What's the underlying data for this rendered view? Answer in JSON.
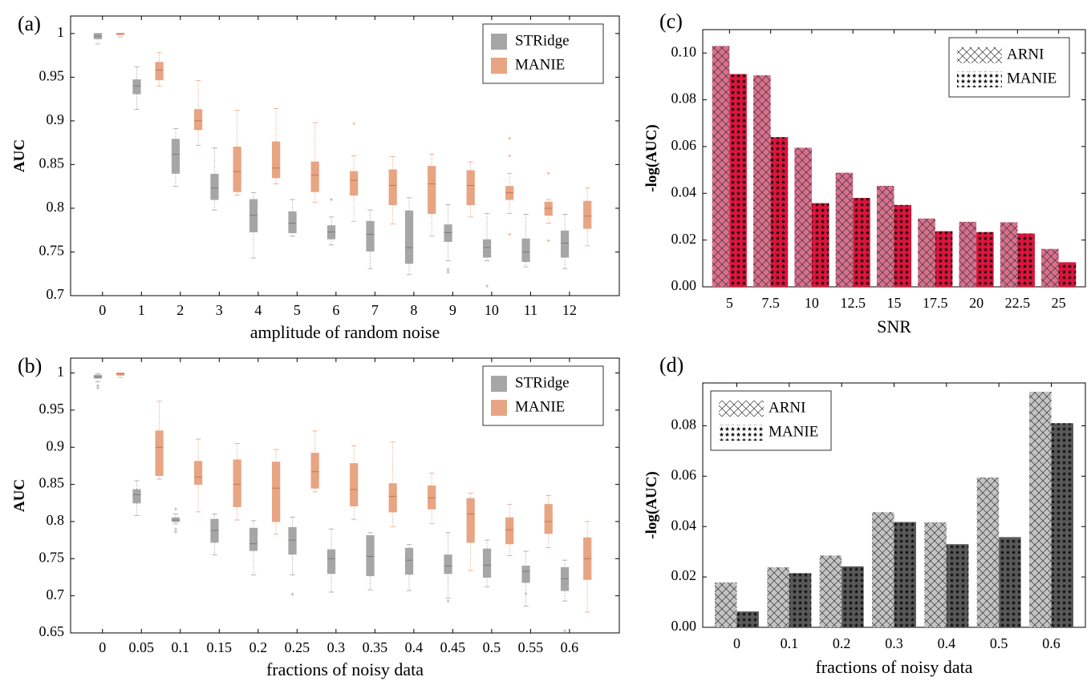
{
  "colors": {
    "stridge": "#a6a6a6",
    "manie_box": "#e8a583",
    "c_arni": "#dc6f8d",
    "c_manie": "#e0143c",
    "d_arni": "#c3c3c3",
    "d_manie": "#595959"
  },
  "chart_data": [
    {
      "panel": "(a)",
      "type": "box",
      "xlabel": "amplitude of random noise",
      "ylabel": "AUC",
      "categories": [
        "0",
        "1",
        "2",
        "3",
        "4",
        "5",
        "6",
        "7",
        "8",
        "9",
        "10",
        "11",
        "12"
      ],
      "ylim": [
        0.7,
        1.02
      ],
      "yticks": [
        {
          "v": 0.7,
          "label": "0.7"
        },
        {
          "v": 0.75,
          "label": "0.75"
        },
        {
          "v": 0.8,
          "label": "0.8"
        },
        {
          "v": 0.85,
          "label": "0.85"
        },
        {
          "v": 0.9,
          "label": "0.9"
        },
        {
          "v": 0.95,
          "label": "0.95"
        },
        {
          "v": 1.0,
          "label": "1"
        }
      ],
      "legend": {
        "position": "top-right",
        "entries": [
          "STRidge",
          "MANIE"
        ]
      },
      "series": [
        {
          "name": "STRidge",
          "color_key": "stridge",
          "boxes": [
            {
              "wlo": 0.988,
              "q1": 0.994,
              "med": 0.997,
              "q3": 1.0,
              "whi": 1.0,
              "out": []
            },
            {
              "wlo": 0.913,
              "q1": 0.931,
              "med": 0.94,
              "q3": 0.947,
              "whi": 0.962,
              "out": []
            },
            {
              "wlo": 0.825,
              "q1": 0.84,
              "med": 0.862,
              "q3": 0.879,
              "whi": 0.891,
              "out": []
            },
            {
              "wlo": 0.798,
              "q1": 0.81,
              "med": 0.823,
              "q3": 0.839,
              "whi": 0.869,
              "out": []
            },
            {
              "wlo": 0.743,
              "q1": 0.773,
              "med": 0.792,
              "q3": 0.81,
              "whi": 0.818,
              "out": []
            },
            {
              "wlo": 0.768,
              "q1": 0.772,
              "med": 0.783,
              "q3": 0.796,
              "whi": 0.81,
              "out": []
            },
            {
              "wlo": 0.758,
              "q1": 0.765,
              "med": 0.773,
              "q3": 0.78,
              "whi": 0.79,
              "out": [
                0.81
              ]
            },
            {
              "wlo": 0.731,
              "q1": 0.751,
              "med": 0.77,
              "q3": 0.785,
              "whi": 0.798,
              "out": []
            },
            {
              "wlo": 0.724,
              "q1": 0.737,
              "med": 0.755,
              "q3": 0.797,
              "whi": 0.812,
              "out": []
            },
            {
              "wlo": 0.74,
              "q1": 0.762,
              "med": 0.772,
              "q3": 0.781,
              "whi": 0.804,
              "out": [
                0.727,
                0.73
              ]
            },
            {
              "wlo": 0.74,
              "q1": 0.744,
              "med": 0.755,
              "q3": 0.764,
              "whi": 0.794,
              "out": [
                0.711
              ]
            },
            {
              "wlo": 0.733,
              "q1": 0.739,
              "med": 0.75,
              "q3": 0.765,
              "whi": 0.793,
              "out": []
            },
            {
              "wlo": 0.731,
              "q1": 0.744,
              "med": 0.76,
              "q3": 0.774,
              "whi": 0.793,
              "out": []
            }
          ]
        },
        {
          "name": "MANIE",
          "color_key": "manie_box",
          "boxes": [
            {
              "wlo": 0.996,
              "q1": 0.999,
              "med": 1.0,
              "q3": 1.0,
              "whi": 1.0,
              "out": []
            },
            {
              "wlo": 0.94,
              "q1": 0.947,
              "med": 0.958,
              "q3": 0.967,
              "whi": 0.978,
              "out": []
            },
            {
              "wlo": 0.872,
              "q1": 0.89,
              "med": 0.9,
              "q3": 0.913,
              "whi": 0.946,
              "out": []
            },
            {
              "wlo": 0.815,
              "q1": 0.819,
              "med": 0.842,
              "q3": 0.87,
              "whi": 0.912,
              "out": []
            },
            {
              "wlo": 0.828,
              "q1": 0.835,
              "med": 0.846,
              "q3": 0.876,
              "whi": 0.914,
              "out": []
            },
            {
              "wlo": 0.807,
              "q1": 0.819,
              "med": 0.838,
              "q3": 0.853,
              "whi": 0.898,
              "out": []
            },
            {
              "wlo": 0.785,
              "q1": 0.815,
              "med": 0.832,
              "q3": 0.842,
              "whi": 0.86,
              "out": [
                0.897
              ]
            },
            {
              "wlo": 0.782,
              "q1": 0.804,
              "med": 0.826,
              "q3": 0.844,
              "whi": 0.859,
              "out": []
            },
            {
              "wlo": 0.768,
              "q1": 0.794,
              "med": 0.828,
              "q3": 0.848,
              "whi": 0.862,
              "out": []
            },
            {
              "wlo": 0.79,
              "q1": 0.804,
              "med": 0.826,
              "q3": 0.843,
              "whi": 0.853,
              "out": []
            },
            {
              "wlo": 0.794,
              "q1": 0.81,
              "med": 0.818,
              "q3": 0.825,
              "whi": 0.84,
              "out": [
                0.77,
                0.86,
                0.88
              ]
            },
            {
              "wlo": 0.783,
              "q1": 0.792,
              "med": 0.8,
              "q3": 0.807,
              "whi": 0.81,
              "out": [
                0.763,
                0.84
              ]
            },
            {
              "wlo": 0.757,
              "q1": 0.777,
              "med": 0.791,
              "q3": 0.808,
              "whi": 0.823,
              "out": []
            }
          ]
        }
      ]
    },
    {
      "panel": "(b)",
      "type": "box",
      "xlabel": "fractions of noisy data",
      "ylabel": "AUC",
      "categories": [
        "0",
        "0.05",
        "0.1",
        "0.15",
        "0.2",
        "0.25",
        "0.3",
        "0.35",
        "0.4",
        "0.45",
        "0.5",
        "0.55",
        "0.6"
      ],
      "ylim": [
        0.65,
        1.02
      ],
      "yticks": [
        {
          "v": 0.65,
          "label": "0.65"
        },
        {
          "v": 0.7,
          "label": "0.7"
        },
        {
          "v": 0.75,
          "label": "0.75"
        },
        {
          "v": 0.8,
          "label": "0.8"
        },
        {
          "v": 0.85,
          "label": "0.85"
        },
        {
          "v": 0.9,
          "label": "0.9"
        },
        {
          "v": 0.95,
          "label": "0.95"
        },
        {
          "v": 1.0,
          "label": "1"
        }
      ],
      "legend": {
        "position": "top-right",
        "entries": [
          "STRidge",
          "MANIE"
        ]
      },
      "series": [
        {
          "name": "STRidge",
          "color_key": "stridge",
          "boxes": [
            {
              "wlo": 0.988,
              "q1": 0.993,
              "med": 0.995,
              "q3": 0.997,
              "whi": 0.999,
              "out": [
                0.98,
                0.983
              ]
            },
            {
              "wlo": 0.808,
              "q1": 0.825,
              "med": 0.836,
              "q3": 0.843,
              "whi": 0.855,
              "out": []
            },
            {
              "wlo": 0.797,
              "q1": 0.8,
              "med": 0.802,
              "q3": 0.805,
              "whi": 0.81,
              "out": [
                0.786,
                0.79,
                0.817
              ]
            },
            {
              "wlo": 0.755,
              "q1": 0.772,
              "med": 0.788,
              "q3": 0.803,
              "whi": 0.81,
              "out": []
            },
            {
              "wlo": 0.728,
              "q1": 0.761,
              "med": 0.77,
              "q3": 0.791,
              "whi": 0.801,
              "out": []
            },
            {
              "wlo": 0.728,
              "q1": 0.756,
              "med": 0.775,
              "q3": 0.792,
              "whi": 0.806,
              "out": [
                0.702
              ]
            },
            {
              "wlo": 0.705,
              "q1": 0.73,
              "med": 0.75,
              "q3": 0.762,
              "whi": 0.79,
              "out": []
            },
            {
              "wlo": 0.708,
              "q1": 0.727,
              "med": 0.753,
              "q3": 0.781,
              "whi": 0.785,
              "out": []
            },
            {
              "wlo": 0.707,
              "q1": 0.729,
              "med": 0.748,
              "q3": 0.764,
              "whi": 0.769,
              "out": []
            },
            {
              "wlo": 0.697,
              "q1": 0.73,
              "med": 0.74,
              "q3": 0.755,
              "whi": 0.785,
              "out": [
                0.693
              ]
            },
            {
              "wlo": 0.712,
              "q1": 0.725,
              "med": 0.741,
              "q3": 0.763,
              "whi": 0.775,
              "out": []
            },
            {
              "wlo": 0.686,
              "q1": 0.718,
              "med": 0.733,
              "q3": 0.74,
              "whi": 0.76,
              "out": [
                0.703
              ]
            },
            {
              "wlo": 0.693,
              "q1": 0.707,
              "med": 0.723,
              "q3": 0.738,
              "whi": 0.748,
              "out": [
                0.653
              ]
            }
          ]
        },
        {
          "name": "MANIE",
          "color_key": "manie_box",
          "boxes": [
            {
              "wlo": 0.994,
              "q1": 0.997,
              "med": 0.999,
              "q3": 1.0,
              "whi": 1.0,
              "out": []
            },
            {
              "wlo": 0.857,
              "q1": 0.862,
              "med": 0.9,
              "q3": 0.922,
              "whi": 0.962,
              "out": []
            },
            {
              "wlo": 0.813,
              "q1": 0.85,
              "med": 0.86,
              "q3": 0.881,
              "whi": 0.911,
              "out": []
            },
            {
              "wlo": 0.802,
              "q1": 0.82,
              "med": 0.85,
              "q3": 0.883,
              "whi": 0.905,
              "out": []
            },
            {
              "wlo": 0.783,
              "q1": 0.8,
              "med": 0.845,
              "q3": 0.88,
              "whi": 0.897,
              "out": []
            },
            {
              "wlo": 0.84,
              "q1": 0.845,
              "med": 0.867,
              "q3": 0.892,
              "whi": 0.922,
              "out": []
            },
            {
              "wlo": 0.803,
              "q1": 0.821,
              "med": 0.843,
              "q3": 0.878,
              "whi": 0.902,
              "out": []
            },
            {
              "wlo": 0.793,
              "q1": 0.813,
              "med": 0.834,
              "q3": 0.851,
              "whi": 0.907,
              "out": []
            },
            {
              "wlo": 0.797,
              "q1": 0.817,
              "med": 0.832,
              "q3": 0.848,
              "whi": 0.865,
              "out": []
            },
            {
              "wlo": 0.734,
              "q1": 0.772,
              "med": 0.81,
              "q3": 0.831,
              "whi": 0.838,
              "out": []
            },
            {
              "wlo": 0.754,
              "q1": 0.77,
              "med": 0.789,
              "q3": 0.805,
              "whi": 0.823,
              "out": []
            },
            {
              "wlo": 0.765,
              "q1": 0.784,
              "med": 0.8,
              "q3": 0.823,
              "whi": 0.835,
              "out": []
            },
            {
              "wlo": 0.678,
              "q1": 0.722,
              "med": 0.75,
              "q3": 0.778,
              "whi": 0.8,
              "out": []
            }
          ]
        }
      ]
    },
    {
      "panel": "(c)",
      "type": "bar",
      "xlabel": "SNR",
      "ylabel": "-log(AUC)",
      "categories": [
        "5",
        "7.5",
        "10",
        "12.5",
        "15",
        "17.5",
        "20",
        "22.5",
        "25"
      ],
      "ylim": [
        0,
        0.11
      ],
      "yticks": [
        {
          "v": 0.0,
          "label": "0.00"
        },
        {
          "v": 0.02,
          "label": "0.02"
        },
        {
          "v": 0.04,
          "label": "0.04"
        },
        {
          "v": 0.06,
          "label": "0.06"
        },
        {
          "v": 0.08,
          "label": "0.08"
        },
        {
          "v": 0.1,
          "label": "0.10"
        }
      ],
      "legend": {
        "position": "top-right",
        "entries": [
          "ARNI",
          "MANIE"
        ]
      },
      "series": [
        {
          "name": "ARNI",
          "color_key": "c_arni",
          "pattern": "cross",
          "values": [
            0.103,
            0.0905,
            0.0595,
            0.0488,
            0.0432,
            0.0292,
            0.0278,
            0.0276,
            0.0162
          ]
        },
        {
          "name": "MANIE",
          "color_key": "c_manie",
          "pattern": "star",
          "values": [
            0.091,
            0.064,
            0.0358,
            0.038,
            0.035,
            0.0238,
            0.0234,
            0.0228,
            0.0105
          ]
        }
      ]
    },
    {
      "panel": "(d)",
      "type": "bar",
      "xlabel": "fractions of noisy data",
      "ylabel": "-log(AUC)",
      "categories": [
        "0",
        "0.1",
        "0.2",
        "0.3",
        "0.4",
        "0.5",
        "0.6"
      ],
      "ylim": [
        0,
        0.097
      ],
      "yticks": [
        {
          "v": 0.0,
          "label": "0.00"
        },
        {
          "v": 0.02,
          "label": "0.02"
        },
        {
          "v": 0.04,
          "label": "0.04"
        },
        {
          "v": 0.06,
          "label": "0.06"
        },
        {
          "v": 0.08,
          "label": "0.08"
        }
      ],
      "legend": {
        "position": "top-left",
        "entries": [
          "ARNI",
          "MANIE"
        ]
      },
      "series": [
        {
          "name": "ARNI",
          "color_key": "d_arni",
          "pattern": "cross",
          "values": [
            0.0178,
            0.0238,
            0.0285,
            0.0457,
            0.0417,
            0.0595,
            0.0935
          ]
        },
        {
          "name": "MANIE",
          "color_key": "d_manie",
          "pattern": "star",
          "values": [
            0.0063,
            0.0215,
            0.0242,
            0.0418,
            0.033,
            0.0358,
            0.081
          ]
        }
      ]
    }
  ]
}
